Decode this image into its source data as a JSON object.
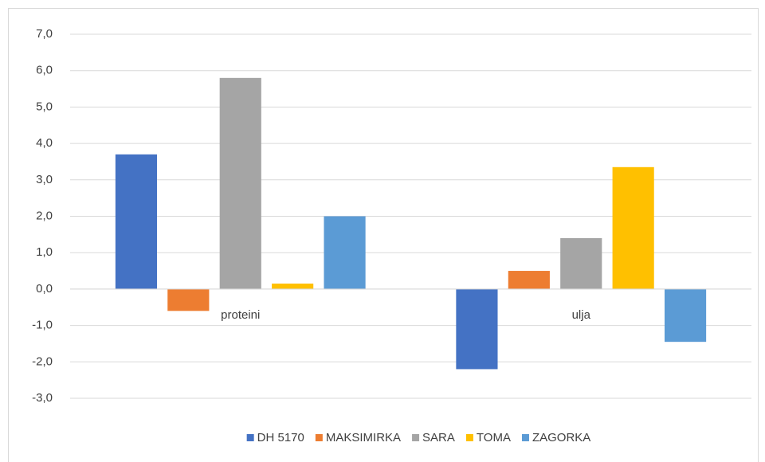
{
  "chart_data": {
    "type": "bar",
    "categories": [
      "proteini",
      "ulja"
    ],
    "series": [
      {
        "name": "DH 5170",
        "color": "#4472c4",
        "values": [
          3.7,
          -2.2
        ]
      },
      {
        "name": "MAKSIMIRKA",
        "color": "#ed7d31",
        "values": [
          -0.6,
          0.5
        ]
      },
      {
        "name": "SARA",
        "color": "#a5a5a5",
        "values": [
          5.8,
          1.4
        ]
      },
      {
        "name": "TOMA",
        "color": "#ffc000",
        "values": [
          0.15,
          3.35
        ]
      },
      {
        "name": "ZAGORKA",
        "color": "#5b9bd5",
        "values": [
          2.0,
          -1.45
        ]
      }
    ],
    "ylim": [
      -3,
      7
    ],
    "yticks": [
      {
        "value": -3,
        "label": "-3,0"
      },
      {
        "value": -2,
        "label": "-2,0"
      },
      {
        "value": -1,
        "label": "-1,0"
      },
      {
        "value": 0,
        "label": "0,0"
      },
      {
        "value": 1,
        "label": "1,0"
      },
      {
        "value": 2,
        "label": "2,0"
      },
      {
        "value": 3,
        "label": "3,0"
      },
      {
        "value": 4,
        "label": "4,0"
      },
      {
        "value": 5,
        "label": "5,0"
      },
      {
        "value": 6,
        "label": "6,0"
      },
      {
        "value": 7,
        "label": "7,0"
      }
    ],
    "grid": true,
    "legend": "bottom"
  }
}
